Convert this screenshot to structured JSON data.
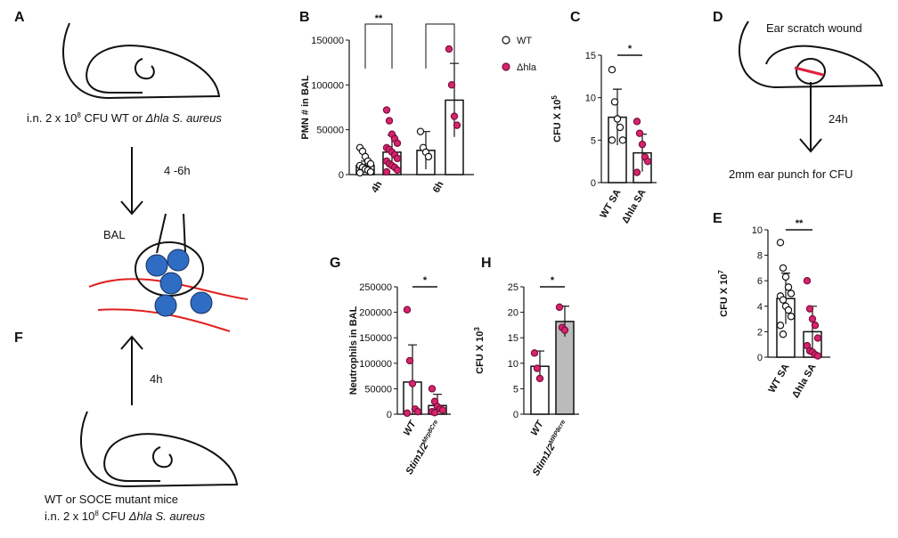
{
  "diagrams": {
    "A": {
      "label": "A",
      "caption": [
        "i.n. 2 x 10",
        "8",
        " CFU WT or ",
        "Δhla S. aureus"
      ],
      "time": "4 -6h",
      "site": "BAL"
    },
    "D": {
      "label": "D",
      "title": "Ear scratch wound",
      "time": "24h",
      "caption": "2mm ear punch for CFU"
    },
    "F": {
      "label": "F",
      "time": "4h",
      "caption1": "WT or SOCE mutant mice",
      "caption2": [
        "i.n. 2 x 10",
        "8",
        " CFU ",
        "Δhla S. aureus"
      ]
    }
  },
  "chart_data": [
    {
      "type": "bar",
      "panel": "B",
      "ylabel": "PMN # in BAL",
      "categories": [
        "4h",
        "6h"
      ],
      "series": [
        {
          "name": "WT",
          "color": "#ffffff",
          "values": [
            10000,
            27000
          ],
          "errors": [
            5000,
            21000
          ],
          "points": [
            [
              30000,
              26000,
              20000,
              15000,
              12000,
              10000,
              8000,
              6000,
              5000,
              3000,
              2000
            ],
            [
              48000,
              30000,
              25000,
              20000
            ]
          ]
        },
        {
          "name": "Δhla",
          "color": "#d6246e",
          "values": [
            25000,
            83000
          ],
          "errors": [
            19000,
            41000
          ],
          "points": [
            [
              72000,
              60000,
              45000,
              40000,
              35000,
              30000,
              28000,
              25000,
              22000,
              18000,
              15000,
              12000,
              10000,
              8000,
              5000,
              3000
            ],
            [
              140000,
              100000,
              65000,
              55000
            ]
          ]
        }
      ],
      "ylim": [
        0,
        150000
      ],
      "yticks": [
        0,
        50000,
        100000,
        150000
      ],
      "significance": [
        "**",
        null
      ]
    },
    {
      "type": "bar",
      "panel": "C",
      "ylabel": "CFU X 10",
      "ylabel_sup": "5",
      "categories": [
        "WT SA",
        "Δhla SA"
      ],
      "values": [
        7.7,
        3.5
      ],
      "errors": [
        3.3,
        2.2
      ],
      "points": [
        [
          13.3,
          9.5,
          7.5,
          6.5,
          5,
          5
        ],
        [
          7.2,
          5.8,
          4.5,
          3,
          2.5,
          1.2
        ]
      ],
      "bar_colors": [
        "#ffffff",
        "#ffffff"
      ],
      "point_colors": [
        "#ffffff",
        "#d6246e"
      ],
      "ylim": [
        0,
        15
      ],
      "yticks": [
        0,
        5,
        10,
        15
      ],
      "significance": "*"
    },
    {
      "type": "bar",
      "panel": "E",
      "ylabel": "CFU X 10",
      "ylabel_sup": "7",
      "categories": [
        "WT SA",
        "Δhla SA"
      ],
      "values": [
        4.6,
        2.0
      ],
      "errors": [
        2.0,
        2.0
      ],
      "points": [
        [
          9,
          7,
          6.3,
          5.5,
          5,
          4.8,
          4.5,
          4,
          3.7,
          3.2,
          2.5,
          1.8
        ],
        [
          6,
          3.8,
          3,
          2.5,
          1.5,
          0.9,
          0.5,
          0.4,
          0.2,
          0.1
        ]
      ],
      "bar_colors": [
        "#ffffff",
        "#ffffff"
      ],
      "point_colors": [
        "#ffffff",
        "#d6246e"
      ],
      "ylim": [
        0,
        10
      ],
      "yticks": [
        0,
        2,
        4,
        6,
        8,
        10
      ],
      "significance": "**"
    },
    {
      "type": "bar",
      "panel": "G",
      "ylabel": "Neutrophils in BAL",
      "categories": [
        {
          "base": "WT"
        },
        {
          "base": "Stim1/2",
          "sup": "Mrp8Cre"
        }
      ],
      "values": [
        63000,
        17000
      ],
      "errors": [
        73000,
        22000
      ],
      "points": [
        [
          205000,
          105000,
          60000,
          10000,
          5000,
          2000
        ],
        [
          50000,
          25000,
          15000,
          10000,
          8000,
          5000,
          3000
        ]
      ],
      "bar_colors": [
        "#ffffff",
        "#ffffff"
      ],
      "point_colors": [
        "#d6246e",
        "#d6246e"
      ],
      "ylim": [
        0,
        250000
      ],
      "yticks": [
        0,
        50000,
        100000,
        150000,
        200000,
        250000
      ],
      "significance": "*"
    },
    {
      "type": "bar",
      "panel": "H",
      "ylabel": "CFU X 10",
      "ylabel_sup": "3",
      "categories": [
        {
          "base": "WT"
        },
        {
          "base": "Stim1/2",
          "sup": "MRP8cre"
        }
      ],
      "values": [
        9.4,
        18.2
      ],
      "errors": [
        3,
        3
      ],
      "points": [
        [
          12,
          9,
          7
        ],
        [
          21,
          17,
          16.5
        ]
      ],
      "bar_colors": [
        "#ffffff",
        "#bbbbbb"
      ],
      "point_colors": [
        "#d6246e",
        "#d6246e"
      ],
      "ylim": [
        0,
        25
      ],
      "yticks": [
        0,
        5,
        10,
        15,
        20,
        25
      ],
      "significance": "*"
    }
  ]
}
